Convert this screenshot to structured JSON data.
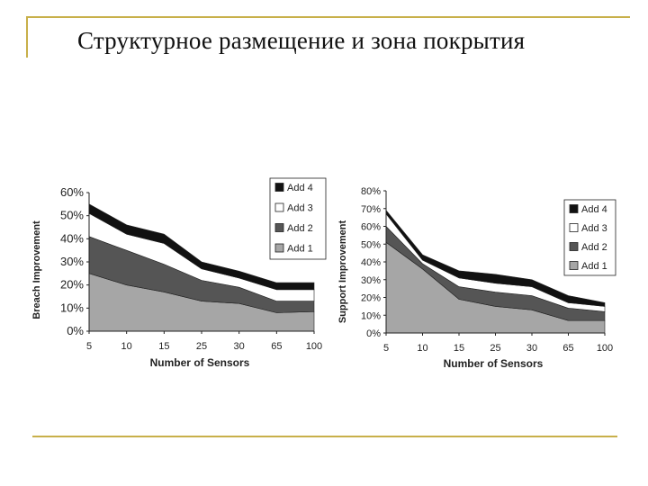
{
  "slide": {
    "title": "Структурное размещение и зона покрытия",
    "accent_color": "#c8b04a"
  },
  "colors": {
    "add4": "#111111",
    "add3": "#ffffff",
    "add2": "#555555",
    "add1": "#a6a6a6"
  },
  "chart_data": [
    {
      "type": "area",
      "stacked": true,
      "categories": [
        "5",
        "10",
        "15",
        "25",
        "30",
        "65",
        "100"
      ],
      "xlabel": "Number of Sensors",
      "ylabel": "Breach Improvement",
      "ylim": [
        0,
        60
      ],
      "yticks": [
        "0%",
        "10%",
        "20%",
        "30%",
        "40%",
        "50%",
        "60%"
      ],
      "legend_position": "top-right",
      "series": [
        {
          "name": "Add 1",
          "values": [
            25,
            20,
            17,
            13,
            12,
            8,
            8.5
          ]
        },
        {
          "name": "Add 2",
          "values": [
            16,
            15,
            12,
            9,
            7,
            5,
            4.5
          ]
        },
        {
          "name": "Add 3",
          "values": [
            10,
            7,
            9,
            5,
            4,
            5,
            5
          ]
        },
        {
          "name": "Add 4",
          "values": [
            4,
            4,
            4,
            3,
            3,
            3,
            3
          ]
        }
      ]
    },
    {
      "type": "area",
      "stacked": true,
      "categories": [
        "5",
        "10",
        "15",
        "25",
        "30",
        "65",
        "100"
      ],
      "xlabel": "Number of Sensors",
      "ylabel": "Support Improvement",
      "ylim": [
        0,
        80
      ],
      "yticks": [
        "0%",
        "10%",
        "20%",
        "30%",
        "40%",
        "50%",
        "60%",
        "70%",
        "80%"
      ],
      "legend_position": "right",
      "series": [
        {
          "name": "Add 1",
          "values": [
            51,
            36,
            19,
            15,
            13,
            7,
            7
          ]
        },
        {
          "name": "Add 2",
          "values": [
            9,
            3,
            7,
            8,
            8,
            7,
            5
          ]
        },
        {
          "name": "Add 3",
          "values": [
            7,
            2,
            5,
            5,
            5,
            3,
            3
          ]
        },
        {
          "name": "Add 4",
          "values": [
            2,
            3,
            4,
            5,
            4,
            4,
            2
          ]
        }
      ]
    }
  ]
}
